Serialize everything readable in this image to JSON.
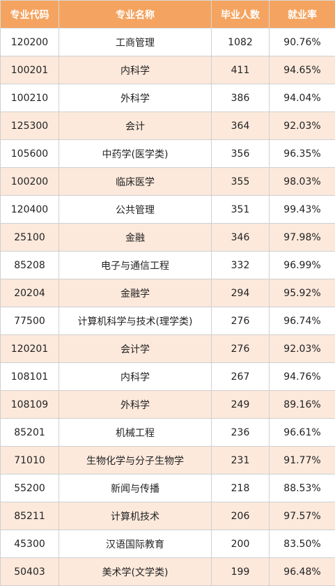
{
  "headers": [
    "专业代码",
    "专业名称",
    "毕业人数",
    "就业率"
  ],
  "rows": [
    {
      "code": "120200",
      "name": "工商管理",
      "count": "1082",
      "rate": "90.76%"
    },
    {
      "code": "100201",
      "name": "内科学",
      "count": "411",
      "rate": "94.65%"
    },
    {
      "code": "100210",
      "name": "外科学",
      "count": "386",
      "rate": "94.04%"
    },
    {
      "code": "125300",
      "name": "会计",
      "count": "364",
      "rate": "92.03%"
    },
    {
      "code": "105600",
      "name": "中药学(医学类)",
      "count": "356",
      "rate": "96.35%"
    },
    {
      "code": "100200",
      "name": "临床医学",
      "count": "355",
      "rate": "98.03%"
    },
    {
      "code": "120400",
      "name": "公共管理",
      "count": "351",
      "rate": "99.43%"
    },
    {
      "code": "25100",
      "name": "金融",
      "count": "346",
      "rate": "97.98%"
    },
    {
      "code": "85208",
      "name": "电子与通信工程",
      "count": "332",
      "rate": "96.99%"
    },
    {
      "code": "20204",
      "name": "金融学",
      "count": "294",
      "rate": "95.92%"
    },
    {
      "code": "77500",
      "name": "计算机科学与技术(理学类)",
      "count": "276",
      "rate": "96.74%"
    },
    {
      "code": "120201",
      "name": "会计学",
      "count": "276",
      "rate": "92.03%"
    },
    {
      "code": "108101",
      "name": "内科学",
      "count": "267",
      "rate": "94.76%"
    },
    {
      "code": "108109",
      "name": "外科学",
      "count": "249",
      "rate": "89.16%"
    },
    {
      "code": "85201",
      "name": "机械工程",
      "count": "236",
      "rate": "96.61%"
    },
    {
      "code": "71010",
      "name": "生物化学与分子生物学",
      "count": "231",
      "rate": "91.77%"
    },
    {
      "code": "55200",
      "name": "新闻与传播",
      "count": "218",
      "rate": "88.53%"
    },
    {
      "code": "85211",
      "name": "计算机技术",
      "count": "206",
      "rate": "97.57%"
    },
    {
      "code": "45300",
      "name": "汉语国际教育",
      "count": "200",
      "rate": "83.50%"
    },
    {
      "code": "50403",
      "name": "美术学(文学类)",
      "count": "199",
      "rate": "96.48%"
    }
  ],
  "colors": {
    "header_bg": "#f4a460",
    "stripe_bg": "#fce9dc"
  }
}
